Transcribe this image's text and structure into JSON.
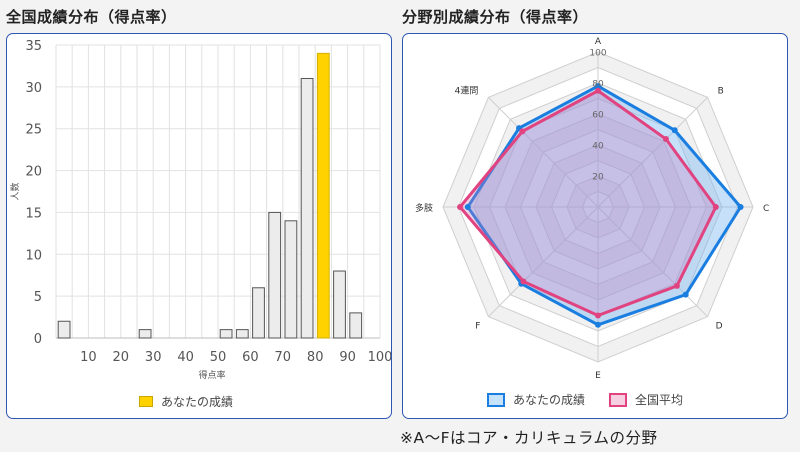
{
  "left": {
    "title": "全国成績分布（得点率）",
    "legend_label": "あなたの成績"
  },
  "right": {
    "title": "分野別成績分布（得点率）",
    "legend_you": "あなたの成績",
    "legend_avg": "全国平均"
  },
  "note": "※A〜Fはコア・カリキュラムの分野",
  "colors": {
    "frame": "#2e56b3",
    "highlight_bar": "#ffd200",
    "bar_fill": "#ececec",
    "you": "#1a7ee0",
    "avg": "#e0437f"
  },
  "chart_data": [
    {
      "type": "bar",
      "xlabel": "得点率",
      "ylabel": "人数",
      "ylim": [
        0,
        35
      ],
      "yticks": [
        0,
        5,
        10,
        15,
        20,
        25,
        30,
        35
      ],
      "xlim": [
        0,
        100
      ],
      "xticks": [
        10,
        20,
        30,
        40,
        50,
        60,
        70,
        80,
        90,
        100
      ],
      "bin_width": 5,
      "bins": [
        {
          "x": 0,
          "value": 2
        },
        {
          "x": 25,
          "value": 1
        },
        {
          "x": 50,
          "value": 1
        },
        {
          "x": 55,
          "value": 1
        },
        {
          "x": 60,
          "value": 6
        },
        {
          "x": 65,
          "value": 15
        },
        {
          "x": 70,
          "value": 14
        },
        {
          "x": 75,
          "value": 31
        },
        {
          "x": 80,
          "value": 34,
          "highlight": true
        },
        {
          "x": 85,
          "value": 8
        },
        {
          "x": 90,
          "value": 3
        }
      ],
      "legend": [
        "あなたの成績"
      ],
      "grid": true
    },
    {
      "type": "radar",
      "axes": [
        "A",
        "B",
        "C",
        "D",
        "E",
        "F",
        "多肢",
        "4連問"
      ],
      "rlim": [
        0,
        100
      ],
      "rticks": [
        20,
        40,
        60,
        80,
        100
      ],
      "series": [
        {
          "name": "あなたの成績",
          "values": [
            78,
            70,
            92,
            80,
            76,
            70,
            84,
            72
          ]
        },
        {
          "name": "全国平均",
          "values": [
            75,
            62,
            76,
            72,
            70,
            68,
            89,
            69
          ]
        }
      ],
      "legend": [
        "あなたの成績",
        "全国平均"
      ]
    }
  ]
}
